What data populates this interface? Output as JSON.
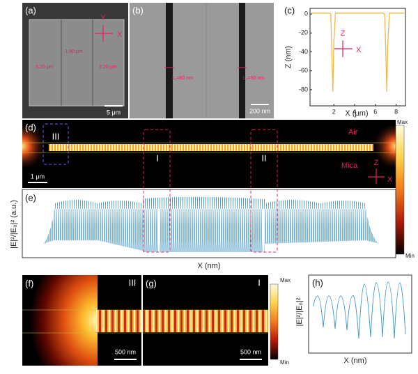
{
  "panel_a": {
    "label": "(a)",
    "axis_y": "Y",
    "axis_x": "X",
    "widths": [
      "1.90 μm",
      "5.20 μm",
      "5.20 μm"
    ],
    "scale_bar": "5 μm"
  },
  "panel_b": {
    "label": "(b)",
    "gaps": [
      "L₁=60 nm",
      "L₂=50 nm"
    ],
    "scale_bar": "200 nm"
  },
  "chart_data": {
    "type": "line",
    "label": "(c)",
    "xlabel": "X (μm)",
    "ylabel": "Z (nm)",
    "axis_z": "Z",
    "axis_x": "X",
    "x": [
      -0.2,
      1.55,
      1.7,
      1.78,
      1.9,
      2.0,
      2.15,
      6.75,
      6.9,
      6.98,
      7.1,
      7.2,
      7.35,
      8.8
    ],
    "series": [
      {
        "color": "#f2b84b",
        "values": [
          1,
          1,
          0,
          -30,
          -82,
          -30,
          1,
          1,
          0,
          -30,
          -82,
          -30,
          1,
          1
        ]
      }
    ],
    "xlim": [
      -0.3,
      8.9
    ],
    "ylim": [
      -97,
      6
    ],
    "xticks": [
      2,
      4,
      6,
      8
    ],
    "yticks": [
      0,
      -20,
      -40,
      -60,
      -80
    ]
  },
  "panel_d": {
    "label": "(d)",
    "regions": [
      "III",
      "I",
      "II"
    ],
    "media": [
      "Air",
      "Mica"
    ],
    "scale_bar": "1 μm",
    "axis_z": "Z",
    "axis_x": "X"
  },
  "colorbar_main": {
    "max": "Max",
    "min": "Min"
  },
  "panel_e": {
    "label": "(e)",
    "ylabel": "|E|²/|E₀|² (a.u.)",
    "xlabel": "X (nm)"
  },
  "panel_f": {
    "label": "(f)",
    "region": "III",
    "scale_bar": "500 nm"
  },
  "panel_g": {
    "label": "(g)",
    "region": "I",
    "scale_bar": "500 nm"
  },
  "colorbar_small": {
    "max": "Max",
    "min": "Min"
  },
  "panel_h": {
    "label": "(h)",
    "ylabel": "|E|²/|E₀|²",
    "xlabel": "X (nm)"
  }
}
